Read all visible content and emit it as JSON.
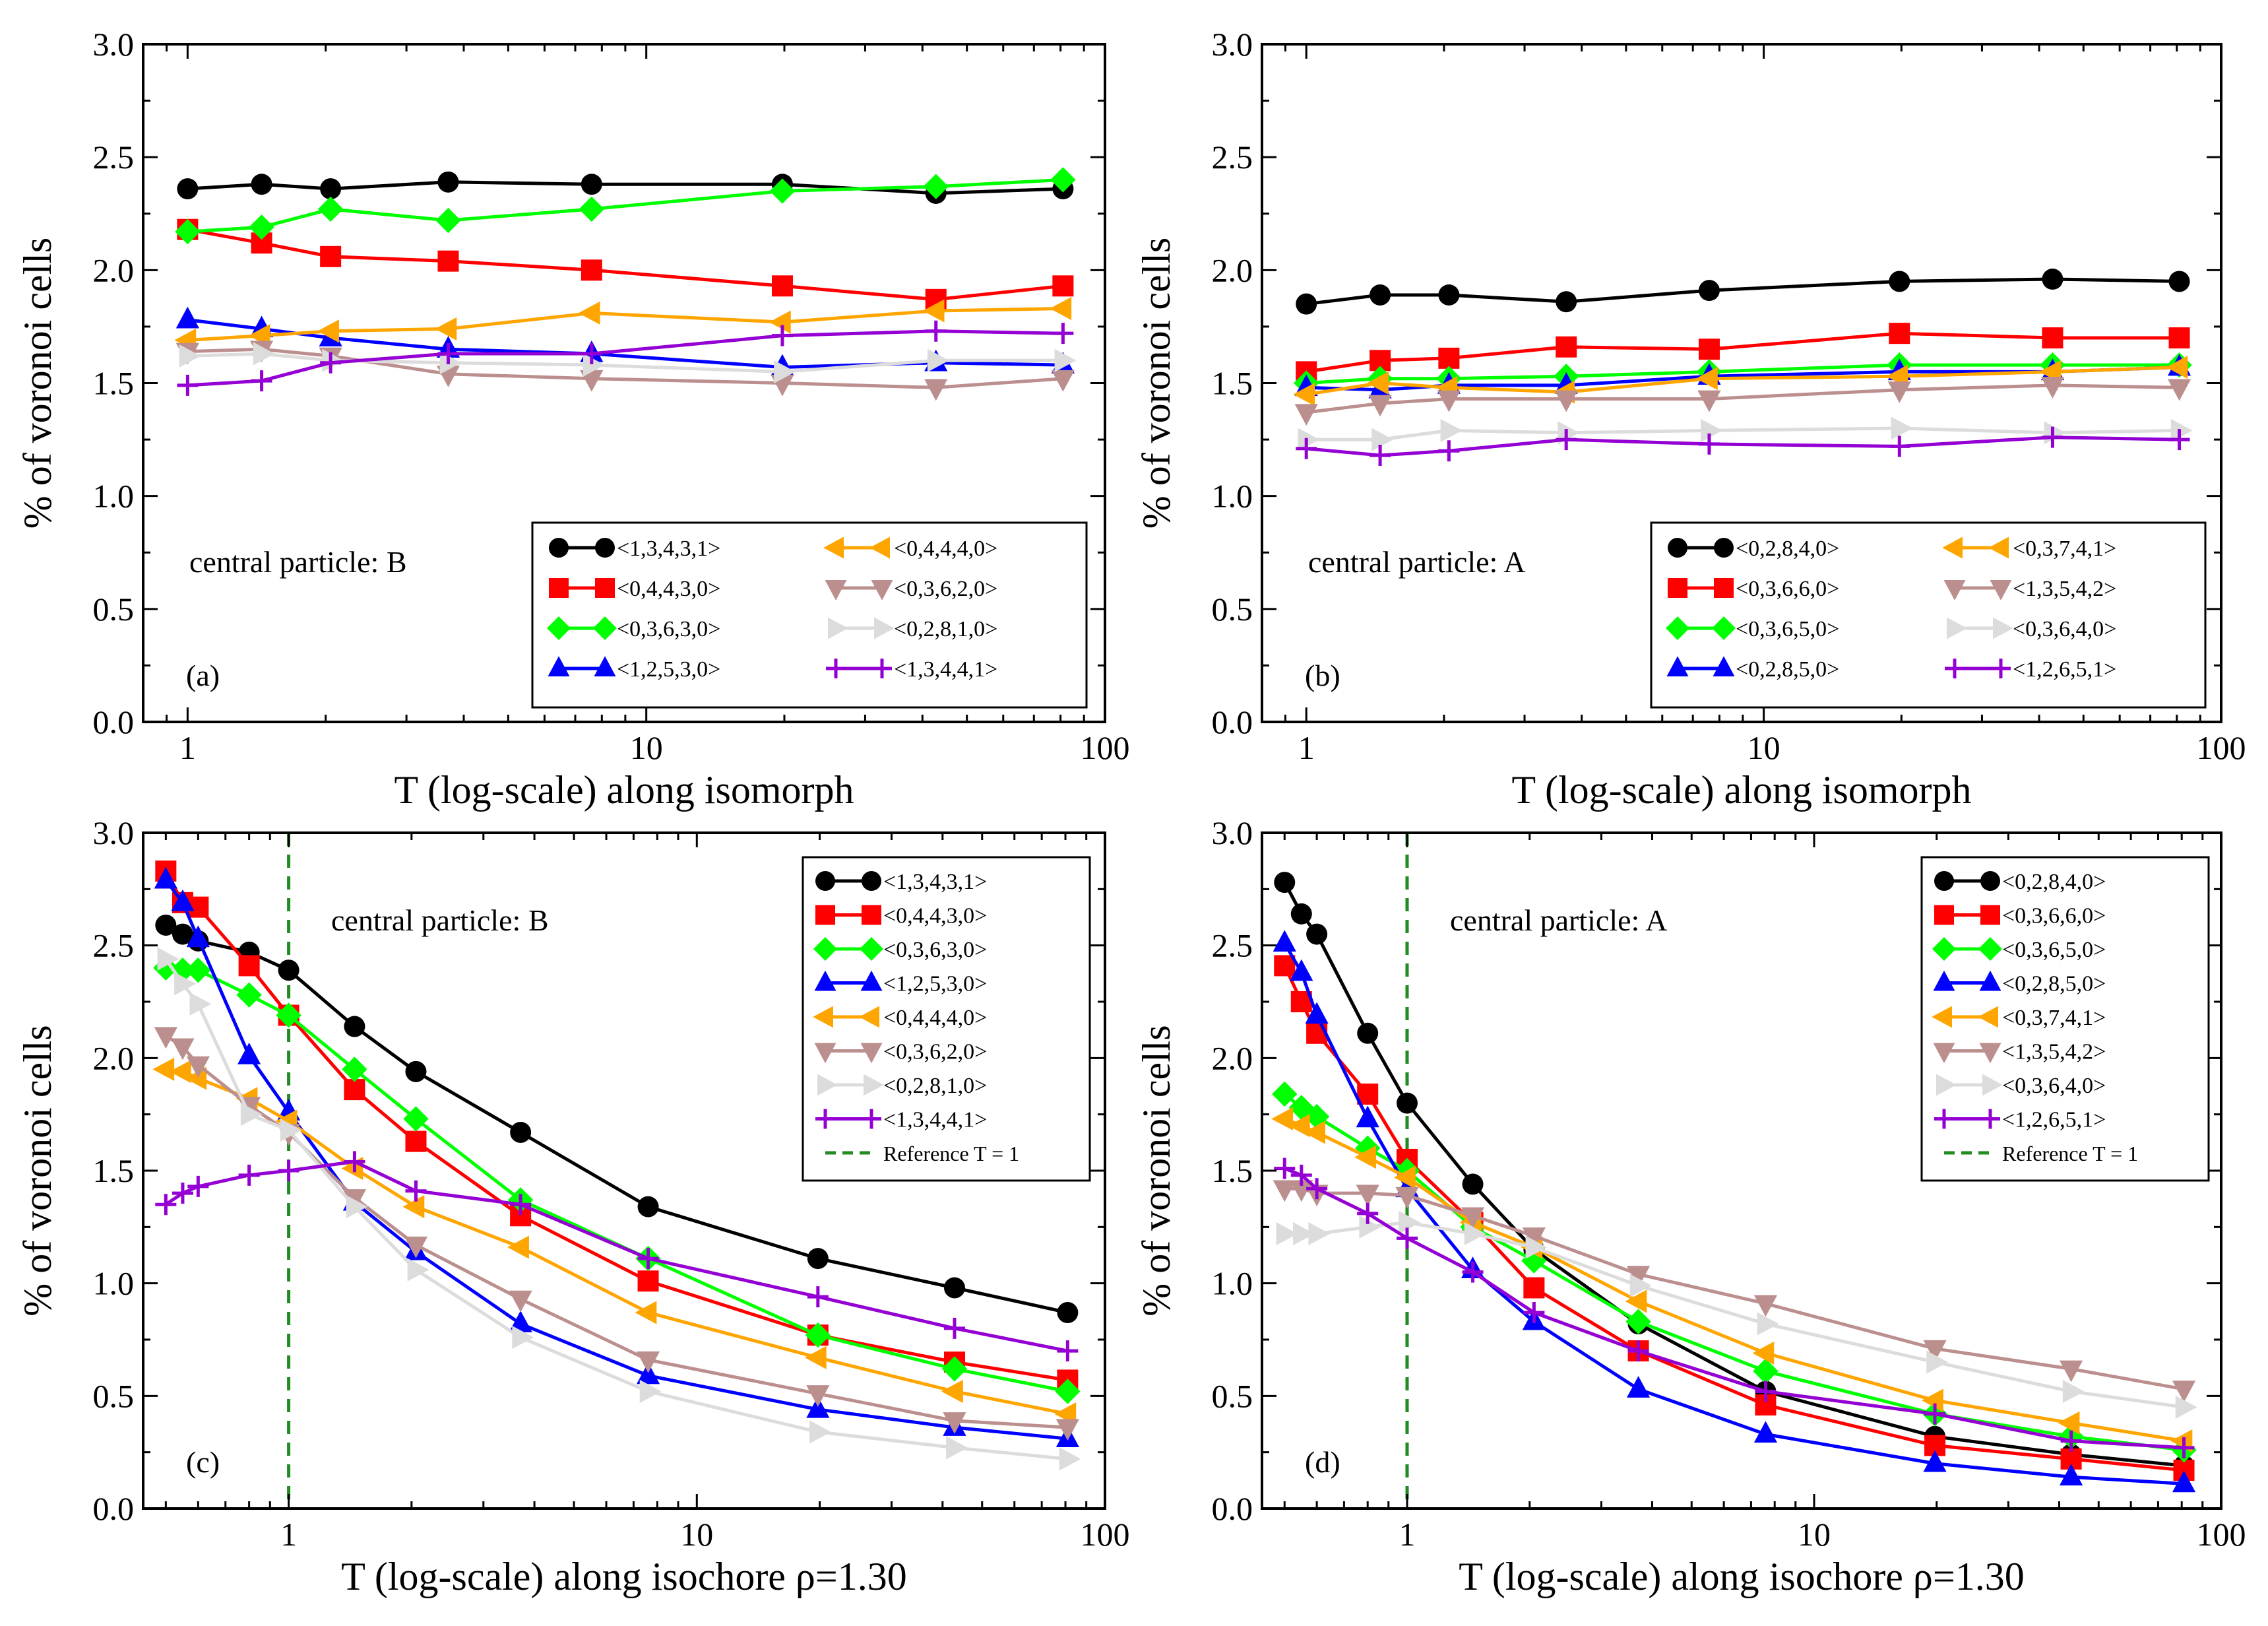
{
  "colors": {
    "c1": "#000000",
    "c2": "#ff0000",
    "c3": "#00ff00",
    "c4": "#0000ff",
    "c5": "#ffa500",
    "c6": "#bc8f8f",
    "c7": "#dcdcdc",
    "c8": "#9400d3",
    "ref": "#228b22"
  },
  "chart_data": [
    {
      "id": "a",
      "type": "line",
      "xscale": "log",
      "panel_label": "(a)",
      "annotation": "central particle: B",
      "xlabel": "T (log-scale) along isomorph",
      "ylabel": "% of voronoi cells",
      "xlim": [
        0.8,
        100
      ],
      "ylim": [
        0,
        3.0
      ],
      "xticks": [
        1,
        10,
        100
      ],
      "xtick_labels": [
        "1",
        "10",
        "100"
      ],
      "yticks": [
        0,
        0.5,
        1.0,
        1.5,
        2.0,
        2.5,
        3.0
      ],
      "ytick_labels": [
        "0.0",
        "0.5",
        "1.0",
        "1.5",
        "2.0",
        "2.5",
        "3.0"
      ],
      "legend_layout": "two-column",
      "legend_position": "bottom-right",
      "x": [
        1,
        1.45,
        2.05,
        3.7,
        7.6,
        19.8,
        42.8,
        81
      ],
      "series": [
        {
          "name": "<1,3,4,3,1>",
          "color": "c1",
          "marker": "circle",
          "values": [
            2.36,
            2.38,
            2.36,
            2.39,
            2.38,
            2.38,
            2.34,
            2.36
          ]
        },
        {
          "name": "<0,4,4,3,0>",
          "color": "c2",
          "marker": "square",
          "values": [
            2.18,
            2.12,
            2.06,
            2.04,
            2.0,
            1.93,
            1.87,
            1.93
          ]
        },
        {
          "name": "<0,3,6,3,0>",
          "color": "c3",
          "marker": "diamond",
          "values": [
            2.17,
            2.19,
            2.27,
            2.22,
            2.27,
            2.35,
            2.37,
            2.4
          ]
        },
        {
          "name": "<1,2,5,3,0>",
          "color": "c4",
          "marker": "triangle-up",
          "values": [
            1.78,
            1.74,
            1.7,
            1.65,
            1.63,
            1.57,
            1.59,
            1.58
          ]
        },
        {
          "name": "<0,4,4,4,0>",
          "color": "c5",
          "marker": "triangle-left",
          "values": [
            1.69,
            1.71,
            1.73,
            1.74,
            1.81,
            1.77,
            1.82,
            1.83
          ]
        },
        {
          "name": "<0,3,6,2,0>",
          "color": "c6",
          "marker": "triangle-down",
          "values": [
            1.64,
            1.65,
            1.62,
            1.54,
            1.52,
            1.5,
            1.48,
            1.52
          ]
        },
        {
          "name": "<0,2,8,1,0>",
          "color": "c7",
          "marker": "triangle-right",
          "values": [
            1.62,
            1.63,
            1.6,
            1.59,
            1.58,
            1.55,
            1.6,
            1.6
          ]
        },
        {
          "name": "<1,3,4,4,1>",
          "color": "c8",
          "marker": "plus",
          "values": [
            1.49,
            1.51,
            1.59,
            1.63,
            1.63,
            1.71,
            1.73,
            1.72
          ]
        }
      ]
    },
    {
      "id": "b",
      "type": "line",
      "xscale": "log",
      "panel_label": "(b)",
      "annotation": "central particle: A",
      "xlabel": "T (log-scale) along isomorph",
      "ylabel": "% of voronoi cells",
      "xlim": [
        0.8,
        100
      ],
      "ylim": [
        0,
        3.0
      ],
      "xticks": [
        1,
        10,
        100
      ],
      "xtick_labels": [
        "1",
        "10",
        "100"
      ],
      "yticks": [
        0,
        0.5,
        1.0,
        1.5,
        2.0,
        2.5,
        3.0
      ],
      "ytick_labels": [
        "0.0",
        "0.5",
        "1.0",
        "1.5",
        "2.0",
        "2.5",
        "3.0"
      ],
      "legend_layout": "two-column",
      "legend_position": "bottom-right",
      "x": [
        1,
        1.45,
        2.05,
        3.7,
        7.6,
        19.8,
        42.8,
        81
      ],
      "series": [
        {
          "name": "<0,2,8,4,0>",
          "color": "c1",
          "marker": "circle",
          "values": [
            1.85,
            1.89,
            1.89,
            1.86,
            1.91,
            1.95,
            1.96,
            1.95
          ]
        },
        {
          "name": "<0,3,6,6,0>",
          "color": "c2",
          "marker": "square",
          "values": [
            1.55,
            1.6,
            1.61,
            1.66,
            1.65,
            1.72,
            1.7,
            1.7
          ]
        },
        {
          "name": "<0,3,6,5,0>",
          "color": "c3",
          "marker": "diamond",
          "values": [
            1.5,
            1.52,
            1.52,
            1.53,
            1.55,
            1.58,
            1.58,
            1.58
          ]
        },
        {
          "name": "<0,2,8,5,0>",
          "color": "c4",
          "marker": "triangle-up",
          "values": [
            1.48,
            1.47,
            1.49,
            1.49,
            1.53,
            1.55,
            1.55,
            1.57
          ]
        },
        {
          "name": "<0,3,7,4,1>",
          "color": "c5",
          "marker": "triangle-left",
          "values": [
            1.45,
            1.5,
            1.48,
            1.46,
            1.52,
            1.53,
            1.55,
            1.57
          ]
        },
        {
          "name": "<1,3,5,4,2>",
          "color": "c6",
          "marker": "triangle-down",
          "values": [
            1.37,
            1.41,
            1.43,
            1.43,
            1.43,
            1.47,
            1.49,
            1.48
          ]
        },
        {
          "name": "<0,3,6,4,0>",
          "color": "c7",
          "marker": "triangle-right",
          "values": [
            1.25,
            1.25,
            1.29,
            1.28,
            1.29,
            1.3,
            1.28,
            1.29
          ]
        },
        {
          "name": "<1,2,6,5,1>",
          "color": "c8",
          "marker": "plus",
          "values": [
            1.21,
            1.18,
            1.2,
            1.25,
            1.23,
            1.22,
            1.26,
            1.25
          ]
        }
      ]
    },
    {
      "id": "c",
      "type": "line",
      "xscale": "log",
      "panel_label": "(c)",
      "annotation": "central particle: B",
      "xlabel": "T (log-scale) along isochore ρ=1.30",
      "ylabel": "% of voronoi cells",
      "xlim": [
        0.44,
        100
      ],
      "ylim": [
        0,
        3.0
      ],
      "xticks": [
        1,
        10,
        100
      ],
      "xtick_labels": [
        "1",
        "10",
        "100"
      ],
      "yticks": [
        0,
        0.5,
        1.0,
        1.5,
        2.0,
        2.5,
        3.0
      ],
      "ytick_labels": [
        "0.0",
        "0.5",
        "1.0",
        "1.5",
        "2.0",
        "2.5",
        "3.0"
      ],
      "legend_layout": "one-column",
      "legend_position": "top-right",
      "reference_line": {
        "x": 1,
        "label": "Reference T = 1"
      },
      "x": [
        0.5,
        0.55,
        0.6,
        0.8,
        1,
        1.45,
        2.05,
        3.7,
        7.6,
        19.8,
        42.8,
        81
      ],
      "series": [
        {
          "name": "<1,3,4,3,1>",
          "color": "c1",
          "marker": "circle",
          "values": [
            2.59,
            2.55,
            2.52,
            2.47,
            2.39,
            2.14,
            1.94,
            1.67,
            1.34,
            1.11,
            0.98,
            0.87
          ]
        },
        {
          "name": "<0,4,4,3,0>",
          "color": "c2",
          "marker": "square",
          "values": [
            2.83,
            2.69,
            2.67,
            2.41,
            2.19,
            1.86,
            1.63,
            1.3,
            1.01,
            0.77,
            0.65,
            0.57
          ]
        },
        {
          "name": "<0,3,6,3,0>",
          "color": "c3",
          "marker": "diamond",
          "values": [
            2.4,
            2.39,
            2.39,
            2.28,
            2.19,
            1.95,
            1.73,
            1.37,
            1.11,
            0.77,
            0.62,
            0.52
          ]
        },
        {
          "name": "<1,2,5,3,0>",
          "color": "c4",
          "marker": "triangle-up",
          "values": [
            2.79,
            2.69,
            2.53,
            2.01,
            1.76,
            1.36,
            1.14,
            0.82,
            0.59,
            0.44,
            0.36,
            0.31
          ]
        },
        {
          "name": "<0,4,4,4,0>",
          "color": "c5",
          "marker": "triangle-left",
          "values": [
            1.95,
            1.94,
            1.91,
            1.82,
            1.72,
            1.51,
            1.34,
            1.16,
            0.87,
            0.67,
            0.52,
            0.42
          ]
        },
        {
          "name": "<0,3,6,2,0>",
          "color": "c6",
          "marker": "triangle-down",
          "values": [
            2.1,
            2.05,
            1.97,
            1.79,
            1.67,
            1.38,
            1.17,
            0.93,
            0.66,
            0.51,
            0.39,
            0.36
          ]
        },
        {
          "name": "<0,2,8,1,0>",
          "color": "c7",
          "marker": "triangle-right",
          "values": [
            2.44,
            2.33,
            2.24,
            1.75,
            1.68,
            1.34,
            1.06,
            0.76,
            0.52,
            0.34,
            0.27,
            0.22
          ]
        },
        {
          "name": "<1,3,4,4,1>",
          "color": "c8",
          "marker": "plus",
          "values": [
            1.35,
            1.4,
            1.43,
            1.48,
            1.5,
            1.54,
            1.41,
            1.35,
            1.11,
            0.94,
            0.8,
            0.7
          ]
        }
      ]
    },
    {
      "id": "d",
      "type": "line",
      "xscale": "log",
      "panel_label": "(d)",
      "annotation": "central particle: A",
      "xlabel": "T (log-scale) along isochore ρ=1.30",
      "ylabel": "% of voronoi cells",
      "xlim": [
        0.44,
        100
      ],
      "ylim": [
        0,
        3.0
      ],
      "xticks": [
        1,
        10,
        100
      ],
      "xtick_labels": [
        "1",
        "10",
        "100"
      ],
      "yticks": [
        0,
        0.5,
        1.0,
        1.5,
        2.0,
        2.5,
        3.0
      ],
      "ytick_labels": [
        "0.0",
        "0.5",
        "1.0",
        "1.5",
        "2.0",
        "2.5",
        "3.0"
      ],
      "legend_layout": "one-column",
      "legend_position": "top-right",
      "reference_line": {
        "x": 1,
        "label": "Reference T = 1"
      },
      "x": [
        0.5,
        0.55,
        0.6,
        0.8,
        1,
        1.45,
        2.05,
        3.7,
        7.6,
        19.8,
        42.8,
        81
      ],
      "series": [
        {
          "name": "<0,2,8,4,0>",
          "color": "c1",
          "marker": "circle",
          "values": [
            2.78,
            2.64,
            2.55,
            2.11,
            1.8,
            1.44,
            1.15,
            0.82,
            0.52,
            0.32,
            0.24,
            0.19
          ]
        },
        {
          "name": "<0,3,6,6,0>",
          "color": "c2",
          "marker": "square",
          "values": [
            2.41,
            2.25,
            2.11,
            1.84,
            1.55,
            1.27,
            0.98,
            0.7,
            0.46,
            0.28,
            0.22,
            0.17
          ]
        },
        {
          "name": "<0,3,6,5,0>",
          "color": "c3",
          "marker": "diamond",
          "values": [
            1.84,
            1.78,
            1.74,
            1.6,
            1.5,
            1.25,
            1.1,
            0.83,
            0.61,
            0.42,
            0.32,
            0.26
          ]
        },
        {
          "name": "<0,2,8,5,0>",
          "color": "c4",
          "marker": "triangle-up",
          "values": [
            2.51,
            2.38,
            2.19,
            1.73,
            1.42,
            1.06,
            0.83,
            0.53,
            0.33,
            0.2,
            0.14,
            0.11
          ]
        },
        {
          "name": "<0,3,7,4,1>",
          "color": "c5",
          "marker": "triangle-left",
          "values": [
            1.73,
            1.7,
            1.67,
            1.56,
            1.47,
            1.27,
            1.16,
            0.92,
            0.69,
            0.48,
            0.38,
            0.3
          ]
        },
        {
          "name": "<1,3,5,4,2>",
          "color": "c6",
          "marker": "triangle-down",
          "values": [
            1.42,
            1.42,
            1.4,
            1.4,
            1.39,
            1.3,
            1.21,
            1.04,
            0.91,
            0.71,
            0.62,
            0.53
          ]
        },
        {
          "name": "<0,3,6,4,0>",
          "color": "c7",
          "marker": "triangle-right",
          "values": [
            1.22,
            1.22,
            1.22,
            1.25,
            1.27,
            1.22,
            1.16,
            0.99,
            0.82,
            0.65,
            0.52,
            0.45
          ]
        },
        {
          "name": "<1,2,6,5,1>",
          "color": "c8",
          "marker": "plus",
          "values": [
            1.51,
            1.48,
            1.42,
            1.31,
            1.2,
            1.05,
            0.87,
            0.7,
            0.52,
            0.42,
            0.3,
            0.27
          ]
        }
      ]
    }
  ]
}
